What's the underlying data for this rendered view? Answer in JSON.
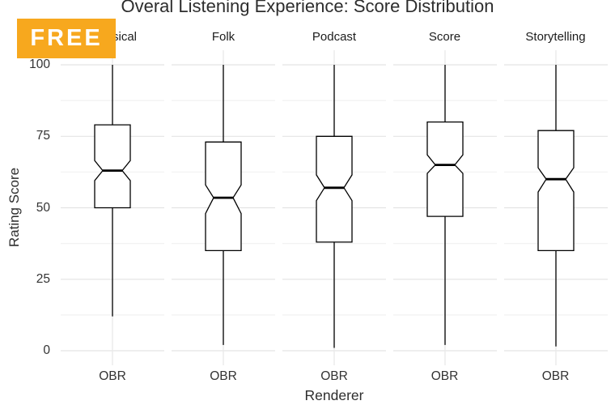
{
  "watermark": {
    "label": "FREE",
    "background": "#F7A81E",
    "text_color": "#FFFFFF"
  },
  "colors": {
    "box_stroke": "#000000",
    "box_fill": "#ffffff",
    "grid_major": "#e4e4e4",
    "grid_minor": "#f2f2f2",
    "grid_vertical": "#e9e9e9",
    "text": "#333333"
  },
  "chart_data": {
    "type": "boxplot",
    "title": "Overal Listening Experience: Score Distribution",
    "xlabel": "Renderer",
    "ylabel": "Rating Score",
    "x_category": "OBR",
    "y_ticks": [
      0,
      25,
      50,
      75,
      100
    ],
    "minor_ticks": [
      12.5,
      37.5,
      62.5,
      87.5
    ],
    "ylim": [
      -5,
      105
    ],
    "grid": "major+minor, horizontal; vertical major at category center",
    "legend": "none",
    "notched": true,
    "facets": [
      {
        "label": "Classical",
        "x": "OBR",
        "min": 12,
        "q1": 50,
        "median": 63,
        "q3": 79,
        "max": 100,
        "notch_low": 59.5,
        "notch_high": 66.5
      },
      {
        "label": "Folk",
        "x": "OBR",
        "min": 2,
        "q1": 35,
        "median": 53.5,
        "q3": 73,
        "max": 100,
        "notch_low": 48,
        "notch_high": 58
      },
      {
        "label": "Podcast",
        "x": "OBR",
        "min": 1,
        "q1": 38,
        "median": 57,
        "q3": 75,
        "max": 100,
        "notch_low": 52.5,
        "notch_high": 61.5
      },
      {
        "label": "Score",
        "x": "OBR",
        "min": 2,
        "q1": 47,
        "median": 65,
        "q3": 80,
        "max": 100,
        "notch_low": 62,
        "notch_high": 68.5
      },
      {
        "label": "Storytelling",
        "x": "OBR",
        "min": 1.5,
        "q1": 35,
        "median": 60,
        "q3": 77,
        "max": 100,
        "notch_low": 55.5,
        "notch_high": 64
      }
    ]
  }
}
